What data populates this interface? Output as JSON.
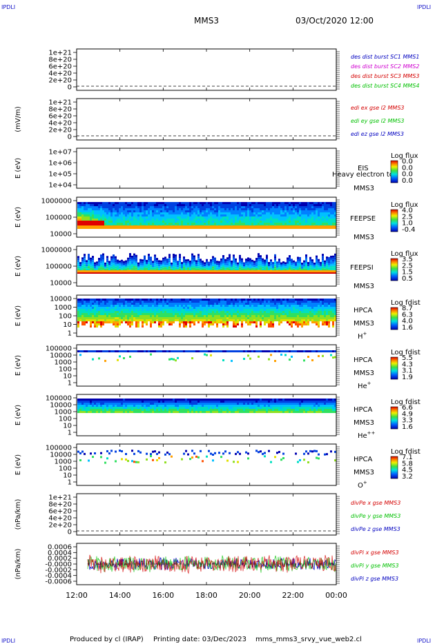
{
  "header": {
    "corner_tl": "IPDLI",
    "corner_tr": "IPDLI",
    "corner_bl": "IPDLI",
    "corner_br": "IPDLI",
    "spacecraft": "MMS3",
    "datetime": "03/Oct/2020 12:00"
  },
  "footer": {
    "produced_by": "Produced by cl (IRAP)",
    "printing_date": "Printing date: 03/Dec/2023",
    "filename": "mms_mms3_srvy_vue_web2.cl"
  },
  "colors": {
    "red": "#d40000",
    "green": "#00c000",
    "blue": "#0000c0",
    "magenta": "#d000d0",
    "legend_blue": "#1010c8"
  },
  "chart_data": {
    "type": "heatmap",
    "x_axis": {
      "range": [
        "12:00",
        "00:00"
      ],
      "tick_labels": [
        "12:00",
        "14:00",
        "16:00",
        "18:00",
        "20:00",
        "22:00",
        "00:00"
      ]
    },
    "panels": [
      {
        "id": "des-dist",
        "type": "line",
        "ylabel": "",
        "ytick_labels": [
          "1e+21",
          "8e+20",
          "6e+20",
          "4e+20",
          "2e+20",
          "0"
        ],
        "ylim": [
          0,
          1e+21
        ],
        "legend": [
          {
            "text": "des dist burst SC1 MMS1",
            "color": "#0000c0"
          },
          {
            "text": "des dist burst SC2 MMS2",
            "color": "#d000d0"
          },
          {
            "text": "des dist burst SC3 MMS3",
            "color": "#d40000"
          },
          {
            "text": "des dist burst SC4 MMS4",
            "color": "#00c000"
          }
        ]
      },
      {
        "id": "edi-e",
        "type": "line",
        "ylabel": "(mV/m)",
        "ytick_labels": [
          "1e+21",
          "8e+20",
          "6e+20",
          "4e+20",
          "2e+20",
          "0"
        ],
        "ylim": [
          0,
          1e+21
        ],
        "legend": [
          {
            "text": "edi ex gse l2 MMS3",
            "color": "#d40000"
          },
          {
            "text": "edi ey gse l2 MMS3",
            "color": "#00c000"
          },
          {
            "text": "edi ez gse l2 MMS3",
            "color": "#0000c0"
          }
        ]
      },
      {
        "id": "eis",
        "type": "heatmap",
        "ylabel": "E (eV)",
        "ytick_labels": [
          "1e+07",
          "1e+06",
          "1e+05",
          "1e+04"
        ],
        "ylim": [
          10000.0,
          10000000.0
        ],
        "scale": "log",
        "labels": [
          "EIS",
          "Heavy electron to",
          "MMS3"
        ],
        "colorbar_title": "Log flux",
        "colorbar_ticks": [
          "0.0",
          "0.0",
          "0.0",
          "0.0"
        ],
        "data": "empty"
      },
      {
        "id": "feeps-e",
        "type": "heatmap",
        "ylabel": "E (eV)",
        "ytick_labels": [
          "1000000",
          "100000",
          "10000"
        ],
        "ylim": [
          10000,
          1000000
        ],
        "scale": "log",
        "labels": [
          "FEEPSE",
          "MMS3"
        ],
        "colorbar_title": "Log flux",
        "colorbar_ticks": [
          "4.0",
          "2.5",
          "1.0",
          "-0.4"
        ]
      },
      {
        "id": "feeps-i",
        "type": "heatmap",
        "ylabel": "E (eV)",
        "ytick_labels": [
          "1000000",
          "100000",
          "10000"
        ],
        "ylim": [
          10000,
          1000000
        ],
        "scale": "log",
        "labels": [
          "FEEPSI",
          "MMS3"
        ],
        "colorbar_title": "Log flux",
        "colorbar_ticks": [
          "3.5",
          "2.5",
          "1.5",
          "0.5"
        ]
      },
      {
        "id": "hpca-h",
        "type": "heatmap",
        "ylabel": "E (eV)",
        "ytick_labels": [
          "10000",
          "1000",
          "100",
          "10",
          "1"
        ],
        "ylim": [
          1,
          30000
        ],
        "scale": "log",
        "labels": [
          "HPCA",
          "MMS3"
        ],
        "species": "H",
        "species_sup": "+",
        "colorbar_title": "Log fdist",
        "colorbar_ticks": [
          "8.7",
          "6.3",
          "4.0",
          "1.6"
        ]
      },
      {
        "id": "hpca-he",
        "type": "heatmap",
        "ylabel": "E (eV)",
        "ytick_labels": [
          "100000",
          "10000",
          "1000",
          "100",
          "10",
          "1"
        ],
        "ylim": [
          1,
          100000
        ],
        "scale": "log",
        "labels": [
          "HPCA",
          "MMS3"
        ],
        "species": "He",
        "species_sup": "+",
        "colorbar_title": "Log fdist",
        "colorbar_ticks": [
          "5.5",
          "4.3",
          "3.1",
          "1.9"
        ]
      },
      {
        "id": "hpca-he2",
        "type": "heatmap",
        "ylabel": "E (eV)",
        "ytick_labels": [
          "100000",
          "10000",
          "1000",
          "100",
          "10",
          "1"
        ],
        "ylim": [
          1,
          100000
        ],
        "scale": "log",
        "labels": [
          "HPCA",
          "MMS3"
        ],
        "species": "He",
        "species_sup": "++",
        "colorbar_title": "Log fdist",
        "colorbar_ticks": [
          "6.6",
          "4.9",
          "3.3",
          "1.6"
        ]
      },
      {
        "id": "hpca-o",
        "type": "heatmap",
        "ylabel": "E (eV)",
        "ytick_labels": [
          "100000",
          "10000",
          "1000",
          "100",
          "10",
          "1"
        ],
        "ylim": [
          1,
          100000
        ],
        "scale": "log",
        "labels": [
          "HPCA",
          "MMS3"
        ],
        "species": "O",
        "species_sup": "+",
        "colorbar_title": "Log fdist",
        "colorbar_ticks": [
          "7.1",
          "5.8",
          "4.5",
          "3.2"
        ]
      },
      {
        "id": "divpe",
        "type": "line",
        "ylabel": "(nPa/km)",
        "ytick_labels": [
          "1e+21",
          "8e+20",
          "6e+20",
          "4e+20",
          "2e+20",
          "0"
        ],
        "ylim": [
          0,
          1e+21
        ],
        "legend": [
          {
            "text": "divPe x gse MMS3",
            "color": "#d40000"
          },
          {
            "text": "divPe y gse MMS3",
            "color": "#00c000"
          },
          {
            "text": "divPe z gse MMS3",
            "color": "#0000c0"
          }
        ]
      },
      {
        "id": "divpi",
        "type": "line",
        "ylabel": "(nPa/km)",
        "ytick_labels": [
          "0.0006",
          "0.0004",
          "0.0002",
          "-0.0000",
          "-0.0002",
          "-0.0004",
          "-0.0006"
        ],
        "ylim": [
          -0.0007,
          0.0007
        ],
        "legend": [
          {
            "text": "divPi x gse MMS3",
            "color": "#d40000"
          },
          {
            "text": "divPi y gse MMS3",
            "color": "#00c000"
          },
          {
            "text": "divPi z gse MMS3",
            "color": "#0000c0"
          }
        ]
      }
    ]
  }
}
